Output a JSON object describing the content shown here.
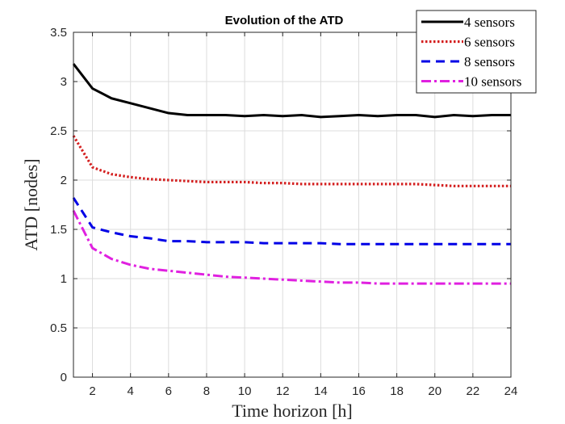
{
  "chart_data": {
    "type": "line",
    "title": "Evolution of the ATD",
    "xlabel": "Time horizon [h]",
    "ylabel": "ATD [nodes]",
    "xlim": [
      1,
      24
    ],
    "ylim": [
      0,
      3.5
    ],
    "xticks": [
      2,
      4,
      6,
      8,
      10,
      12,
      14,
      16,
      18,
      20,
      22,
      24
    ],
    "yticks": [
      0,
      0.5,
      1,
      1.5,
      2,
      2.5,
      3,
      3.5
    ],
    "grid": true,
    "legend_position": "top-right",
    "x": [
      1,
      2,
      3,
      4,
      5,
      6,
      7,
      8,
      9,
      10,
      11,
      12,
      13,
      14,
      15,
      16,
      17,
      18,
      19,
      20,
      21,
      22,
      23,
      24
    ],
    "series": [
      {
        "name": "4 sensors",
        "color": "#000000",
        "style": "solid",
        "values": [
          3.18,
          2.93,
          2.83,
          2.78,
          2.73,
          2.68,
          2.66,
          2.66,
          2.66,
          2.65,
          2.66,
          2.65,
          2.66,
          2.64,
          2.65,
          2.66,
          2.65,
          2.66,
          2.66,
          2.64,
          2.66,
          2.65,
          2.66,
          2.66
        ]
      },
      {
        "name": "6 sensors",
        "color": "#d42020",
        "style": "dotted",
        "values": [
          2.45,
          2.13,
          2.06,
          2.03,
          2.01,
          2.0,
          1.99,
          1.98,
          1.98,
          1.98,
          1.97,
          1.97,
          1.96,
          1.96,
          1.96,
          1.96,
          1.96,
          1.96,
          1.96,
          1.95,
          1.94,
          1.94,
          1.94,
          1.94
        ]
      },
      {
        "name": "8 sensors",
        "color": "#0000e6",
        "style": "dashed",
        "values": [
          1.82,
          1.52,
          1.47,
          1.43,
          1.41,
          1.38,
          1.38,
          1.37,
          1.37,
          1.37,
          1.36,
          1.36,
          1.36,
          1.36,
          1.35,
          1.35,
          1.35,
          1.35,
          1.35,
          1.35,
          1.35,
          1.35,
          1.35,
          1.35
        ]
      },
      {
        "name": "10 sensors",
        "color": "#e020e0",
        "style": "dashdot",
        "values": [
          1.69,
          1.31,
          1.2,
          1.14,
          1.1,
          1.08,
          1.06,
          1.04,
          1.02,
          1.01,
          1.0,
          0.99,
          0.98,
          0.97,
          0.96,
          0.96,
          0.95,
          0.95,
          0.95,
          0.95,
          0.95,
          0.95,
          0.95,
          0.95
        ]
      }
    ]
  }
}
